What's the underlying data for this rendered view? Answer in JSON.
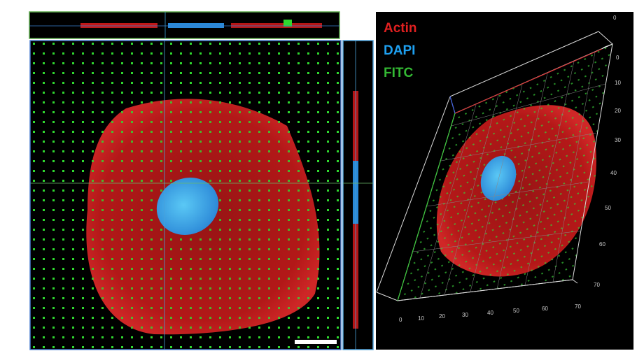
{
  "legend": [
    "Actin",
    "DAPI",
    "FITC"
  ],
  "depth_ticks": [
    0,
    0,
    10,
    20,
    30,
    40,
    50,
    60,
    70
  ],
  "x_ticks": [
    0,
    10,
    20,
    30,
    40,
    50,
    60,
    70
  ]
}
